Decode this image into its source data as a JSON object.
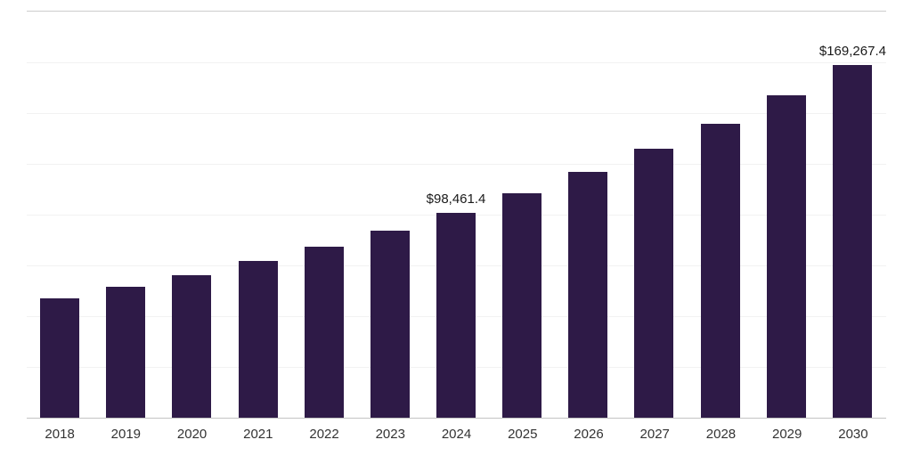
{
  "chart_data": {
    "type": "bar",
    "title": "",
    "xlabel": "",
    "ylabel": "",
    "categories": [
      "2018",
      "2019",
      "2020",
      "2021",
      "2022",
      "2023",
      "2024",
      "2025",
      "2026",
      "2027",
      "2028",
      "2029",
      "2030"
    ],
    "values": [
      57300,
      62700,
      68600,
      75100,
      82200,
      90000,
      98461.4,
      107800,
      118000,
      129100,
      141300,
      154700,
      169267.4
    ],
    "data_labels": {
      "2024": "$98,461.4",
      "2030": "$169,267.4"
    },
    "ylim": [
      0,
      195000
    ],
    "grid": true,
    "gridline_count": 8,
    "legend_position": "none",
    "bar_color": "#2E1A47",
    "gridline_color": "#f2f2f2",
    "axis_line_color": "#c4c4c4",
    "top_line_color": "#cccccc",
    "value_label_color": "#1a1a1a",
    "tick_label_color": "#333333"
  }
}
